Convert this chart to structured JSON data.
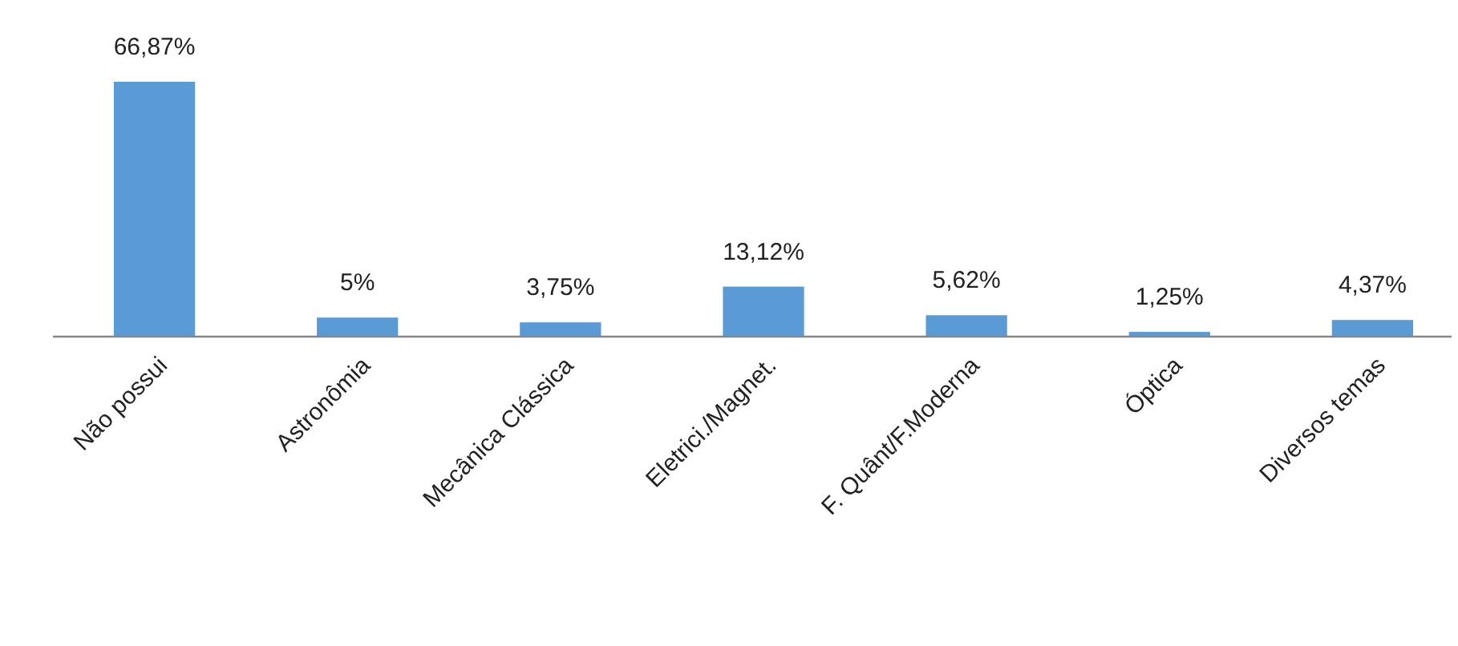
{
  "chart_data": {
    "type": "bar",
    "categories": [
      "Não possui",
      "Astronômia",
      "Mecânica Clássica",
      "Eletrici./Magnet.",
      "F. Quânt/F.Moderna",
      "Óptica",
      "Diversos temas"
    ],
    "values": [
      66.87,
      5,
      3.75,
      13.12,
      5.62,
      1.25,
      4.37
    ],
    "value_labels": [
      "66,87%",
      "5%",
      "3,75%",
      "13,12%",
      "5,62%",
      "1,25%",
      "4,37%"
    ],
    "color": "#5b9bd5"
  }
}
